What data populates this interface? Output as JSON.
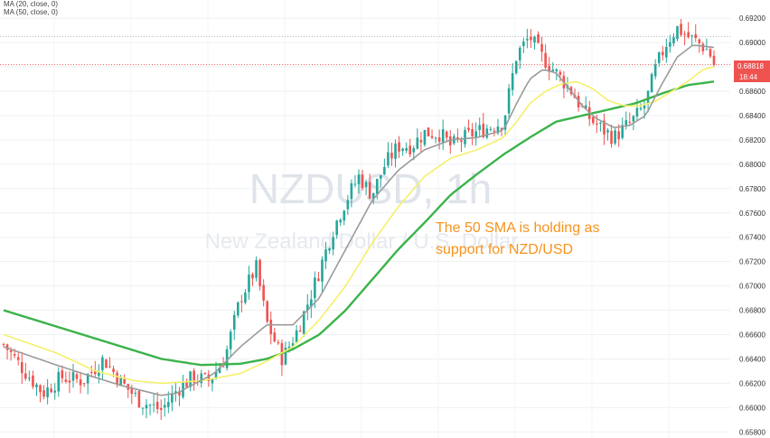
{
  "legend": {
    "ma20_label": "MA (20, close, 0)",
    "ma50_label": "MA (50, close, 0)"
  },
  "watermark": {
    "symbol": "NZDUSD, 1h",
    "description": "New Zealand Dollar / U.S. Dollar"
  },
  "annotation": {
    "line1": "The 50 SMA is holding as",
    "line2": "support for NZD/USD"
  },
  "price_tag": {
    "price": "0.68818",
    "countdown": "18:44"
  },
  "colors": {
    "up": "#26a69a",
    "down": "#ef5350",
    "ma_gray": "#9b9b9b",
    "ma_yellow": "#f5f06a",
    "ma_green": "#3bb34a",
    "annotation": "#f7931e",
    "price_tag": "#ef5350"
  },
  "chart_data": {
    "type": "candlestick",
    "ylim": [
      0.6575,
      0.6935
    ],
    "yticks": [
      "0.65800",
      "0.66000",
      "0.66200",
      "0.66400",
      "0.66600",
      "0.66800",
      "0.67000",
      "0.67200",
      "0.67400",
      "0.67600",
      "0.67800",
      "0.68000",
      "0.68200",
      "0.68400",
      "0.68600",
      "0.68800",
      "0.69000",
      "0.69200"
    ],
    "bar_count": 195,
    "close_path": [
      [
        0,
        0.6652
      ],
      [
        8,
        0.663
      ],
      [
        15,
        0.6612
      ],
      [
        22,
        0.6625
      ],
      [
        30,
        0.6622
      ],
      [
        38,
        0.664
      ],
      [
        45,
        0.662
      ],
      [
        52,
        0.6605
      ],
      [
        60,
        0.6598
      ],
      [
        66,
        0.6615
      ],
      [
        72,
        0.6625
      ],
      [
        78,
        0.6622
      ],
      [
        84,
        0.664
      ],
      [
        90,
        0.669
      ],
      [
        96,
        0.6715
      ],
      [
        100,
        0.667
      ],
      [
        106,
        0.664
      ],
      [
        112,
        0.6665
      ],
      [
        118,
        0.67
      ],
      [
        125,
        0.6745
      ],
      [
        130,
        0.677
      ],
      [
        135,
        0.679
      ],
      [
        140,
        0.6775
      ],
      [
        145,
        0.68
      ],
      [
        150,
        0.6815
      ],
      [
        155,
        0.6815
      ],
      [
        160,
        0.6826
      ],
      [
        166,
        0.6825
      ],
      [
        170,
        0.6815
      ],
      [
        178,
        0.6825
      ],
      [
        184,
        0.683
      ],
      [
        190,
        0.6835
      ],
      [
        195,
        0.689
      ],
      [
        200,
        0.6905
      ],
      [
        204,
        0.689
      ],
      [
        208,
        0.688
      ],
      [
        212,
        0.687
      ],
      [
        216,
        0.686
      ],
      [
        220,
        0.6845
      ],
      [
        224,
        0.6835
      ],
      [
        228,
        0.6828
      ],
      [
        232,
        0.6822
      ],
      [
        236,
        0.683
      ],
      [
        240,
        0.6838
      ],
      [
        244,
        0.685
      ],
      [
        248,
        0.688
      ],
      [
        252,
        0.69
      ],
      [
        256,
        0.6912
      ],
      [
        260,
        0.6905
      ],
      [
        264,
        0.69
      ],
      [
        268,
        0.6893
      ],
      [
        270,
        0.6882
      ]
    ],
    "ma_gray_path": [
      [
        0,
        0.665
      ],
      [
        20,
        0.6635
      ],
      [
        30,
        0.6628
      ],
      [
        45,
        0.6618
      ],
      [
        60,
        0.661
      ],
      [
        66,
        0.6612
      ],
      [
        80,
        0.6628
      ],
      [
        90,
        0.665
      ],
      [
        100,
        0.6668
      ],
      [
        110,
        0.6668
      ],
      [
        120,
        0.669
      ],
      [
        130,
        0.673
      ],
      [
        140,
        0.677
      ],
      [
        150,
        0.6795
      ],
      [
        160,
        0.6812
      ],
      [
        170,
        0.682
      ],
      [
        180,
        0.6822
      ],
      [
        190,
        0.6828
      ],
      [
        195,
        0.685
      ],
      [
        200,
        0.687
      ],
      [
        205,
        0.6878
      ],
      [
        210,
        0.6875
      ],
      [
        215,
        0.6862
      ],
      [
        220,
        0.6848
      ],
      [
        225,
        0.6838
      ],
      [
        232,
        0.683
      ],
      [
        238,
        0.6832
      ],
      [
        244,
        0.684
      ],
      [
        250,
        0.6865
      ],
      [
        256,
        0.6888
      ],
      [
        262,
        0.6898
      ],
      [
        270,
        0.6896
      ]
    ],
    "ma_yellow_path": [
      [
        0,
        0.666
      ],
      [
        20,
        0.6645
      ],
      [
        35,
        0.663
      ],
      [
        50,
        0.6622
      ],
      [
        60,
        0.662
      ],
      [
        75,
        0.6622
      ],
      [
        90,
        0.6628
      ],
      [
        100,
        0.6638
      ],
      [
        110,
        0.665
      ],
      [
        120,
        0.6672
      ],
      [
        130,
        0.67
      ],
      [
        140,
        0.6735
      ],
      [
        150,
        0.6765
      ],
      [
        160,
        0.679
      ],
      [
        170,
        0.6805
      ],
      [
        180,
        0.6812
      ],
      [
        190,
        0.6822
      ],
      [
        195,
        0.6835
      ],
      [
        200,
        0.685
      ],
      [
        206,
        0.686
      ],
      [
        212,
        0.6866
      ],
      [
        218,
        0.6868
      ],
      [
        224,
        0.6862
      ],
      [
        230,
        0.6852
      ],
      [
        236,
        0.6848
      ],
      [
        242,
        0.6848
      ],
      [
        248,
        0.6852
      ],
      [
        254,
        0.686
      ],
      [
        260,
        0.6868
      ],
      [
        266,
        0.6878
      ],
      [
        270,
        0.688
      ]
    ],
    "ma_green_path": [
      [
        0,
        0.668
      ],
      [
        15,
        0.667
      ],
      [
        30,
        0.666
      ],
      [
        45,
        0.665
      ],
      [
        60,
        0.664
      ],
      [
        75,
        0.6635
      ],
      [
        90,
        0.6636
      ],
      [
        100,
        0.664
      ],
      [
        110,
        0.6648
      ],
      [
        120,
        0.666
      ],
      [
        130,
        0.668
      ],
      [
        140,
        0.6705
      ],
      [
        150,
        0.673
      ],
      [
        160,
        0.6752
      ],
      [
        170,
        0.6775
      ],
      [
        180,
        0.6792
      ],
      [
        190,
        0.6808
      ],
      [
        200,
        0.6822
      ],
      [
        210,
        0.6835
      ],
      [
        220,
        0.684
      ],
      [
        230,
        0.6845
      ],
      [
        240,
        0.685
      ],
      [
        250,
        0.6858
      ],
      [
        260,
        0.6865
      ],
      [
        270,
        0.6868
      ]
    ],
    "reference_line": 0.6905
  }
}
